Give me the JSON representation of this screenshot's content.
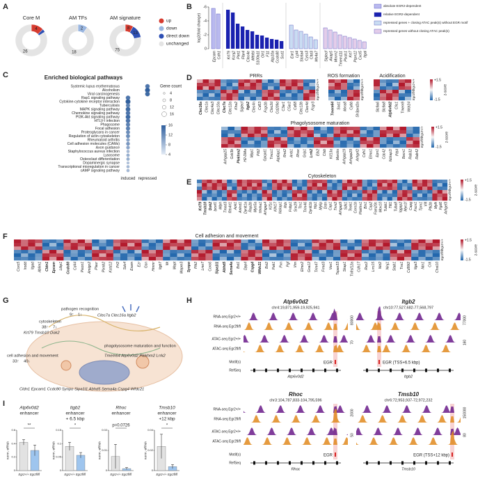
{
  "panel_labels": [
    "A",
    "B",
    "C",
    "D",
    "E",
    "F",
    "G",
    "H",
    "I"
  ],
  "chart_data": [
    {
      "type": "donut",
      "categories": [
        "up",
        "down",
        "direct down",
        "unchanged"
      ],
      "colors": [
        "#d63b2f",
        "#9ab6e0",
        "#2d4fb4",
        "#e4e4e4"
      ],
      "donuts": [
        {
          "title": "Core M",
          "values": [
            4,
            0,
            1,
            26
          ]
        },
        {
          "title": "AM TFs",
          "values": [
            0,
            2,
            0,
            18
          ]
        },
        {
          "title": "AM signature",
          "values": [
            8,
            0,
            13,
            75
          ]
        }
      ]
    },
    {
      "type": "bar",
      "ylabel": "log2(fold change)",
      "ylim": [
        0,
        -6
      ],
      "yticks": [
        0,
        -2,
        -4,
        -6
      ],
      "series": [
        {
          "name": "absolute EGR2-dependent",
          "color": "#b9b9ef",
          "categories": [
            "Epcam",
            "Cdh1"
          ],
          "values": [
            -5.8,
            -5.0
          ]
        },
        {
          "name": "relative EGR2-dependent",
          "color": "#1a22b0",
          "categories": [
            "Krt79",
            "Kcnj2",
            "Plet1",
            "Ffar4",
            "Clec4e",
            "Mthfsl",
            "S100a11",
            "Olr1",
            "F11",
            "Atp10a",
            "Ccdc80",
            "Scd1"
          ],
          "values": [
            -5.6,
            -5.2,
            -3.6,
            -3.2,
            -2.7,
            -2.5,
            -2.0,
            -1.9,
            -1.6,
            -1.4,
            -1.3,
            -1.1
          ]
        },
        {
          "name": "repressed genes + closing ATAC peak(s) without EGR motif",
          "color": "#c9dcf2",
          "categories": [
            "Ear1",
            "Lpl4",
            "Slc6a4",
            "Cyss3",
            "Cltd3",
            "Ms4a7"
          ],
          "values": [
            -3.4,
            -2.7,
            -2.5,
            -2.1,
            -1.7,
            -1.3
          ]
        },
        {
          "name": "repressed genes without closing ATAC peak(s)",
          "color": "#e3cdea",
          "categories": [
            "Siglecf",
            "Akap5",
            "Mmrn2",
            "Tmem111",
            "Plxdc1",
            "Krt7",
            "Ptpn12",
            "Cxcl5",
            "Itgal"
          ],
          "values": [
            -3.0,
            -2.7,
            -2.4,
            -2.0,
            -1.8,
            -1.6,
            -1.4,
            -1.2,
            -1.0
          ]
        }
      ]
    },
    {
      "type": "dot",
      "title": "Enriched biological pathways",
      "size_title": "Gene count",
      "size_ticks": [
        4,
        8,
        12,
        16
      ],
      "color_ticks": [
        16,
        12,
        8,
        4
      ],
      "x": [
        "induced",
        "repressed"
      ],
      "categories": [
        "Systemic lupus erythematosus",
        "Alcoholism",
        "Viral carcinogenesis",
        "Rap1 signaling pathway",
        "Cytokine-cytokine receptor interaction",
        "Tuberculosis",
        "MAPK signaling pathway",
        "Chemokine signaling pathway",
        "PI3K-Akt signaling pathway",
        "HTLV-I infection",
        "Phagosome",
        "Focal adhesion",
        "Proteoglycans in cancer",
        "Regulation of actin cytoskeleton",
        "Rheumatoid arthritis",
        "Cell adhesion molecules (CAMs)",
        "Axon guidance",
        "Staphylococcus aureus infection",
        "Lysosome",
        "Osteoclast differentiation",
        "Dopaminergic synapse",
        "Transcriptional misregulation in cancer",
        "cAMP signaling pathway"
      ],
      "series": [
        {
          "name": "induced",
          "values": [
            null,
            null,
            null,
            14,
            16,
            13,
            15,
            14,
            15,
            14,
            13,
            13,
            12,
            12,
            10,
            11,
            10,
            8,
            9,
            9,
            7,
            8,
            8
          ]
        },
        {
          "name": "repressed",
          "values": [
            14,
            16,
            15,
            null,
            null,
            null,
            null,
            null,
            null,
            null,
            null,
            null,
            null,
            null,
            null,
            null,
            null,
            null,
            null,
            null,
            null,
            null,
            null
          ]
        }
      ]
    },
    {
      "type": "bar",
      "title": [
        "Atp6v0d2",
        "enhancer"
      ],
      "ylabel": "norm. eRNA",
      "categories": [
        "Egr2+/+",
        "Egr2fl/fl"
      ],
      "colors": [
        "#e2e2e2",
        "#9ec5ee"
      ],
      "values": [
        0.42,
        0.3
      ],
      "errors": [
        0.04,
        0.08
      ],
      "ylim": [
        0,
        0.6
      ],
      "yticks": [
        0,
        0.2,
        0.4,
        0.6
      ],
      "annotation": "**"
    },
    {
      "type": "bar",
      "title": [
        "Itgb2",
        "enhancer",
        "+ 6.5 kbp"
      ],
      "ylabel": "norm. eRNA",
      "categories": [
        "Egr2+/+",
        "Egr2fl/fl"
      ],
      "colors": [
        "#e2e2e2",
        "#9ec5ee"
      ],
      "values": [
        0.09,
        0.057
      ],
      "errors": [
        0.015,
        0.01
      ],
      "ylim": [
        0,
        0.15
      ],
      "yticks": [
        0,
        0.05,
        0.1,
        0.15
      ],
      "annotation": "*"
    },
    {
      "type": "bar",
      "title": [
        "Rhoc",
        "enhancer"
      ],
      "ylabel": "norm. eRNA",
      "categories": [
        "Egr2+/+",
        "Egr2fl/fl"
      ],
      "colors": [
        "#e2e2e2",
        "#9ec5ee"
      ],
      "values": [
        0.007,
        0.001
      ],
      "errors": [
        0.006,
        0.0005
      ],
      "ylim": [
        0,
        0.02
      ],
      "yticks": [
        0,
        0.01,
        0.02
      ],
      "annotation": "p=0.0726"
    },
    {
      "type": "bar",
      "title": [
        "Tmsb10",
        "enhancer",
        "+12 kbp"
      ],
      "ylabel": "norm. eRNA",
      "categories": [
        "Egr2+/+",
        "Egr2fl/fl"
      ],
      "colors": [
        "#e2e2e2",
        "#9ec5ee"
      ],
      "values": [
        0.024,
        0.004
      ],
      "errors": [
        0.012,
        0.002
      ],
      "ylim": [
        0,
        0.04
      ],
      "yticks": [
        0,
        0.02,
        0.04
      ],
      "annotation": "*"
    }
  ],
  "heatmaps": {
    "row_labels": [
      "Egr2+/+",
      "Egr2fl/fl"
    ],
    "scale": {
      "max": "+1.5",
      "min": "-1.5",
      "title": "z-score"
    },
    "blocks": [
      {
        "title": "PRRs",
        "genes": [
          "Clec16a",
          "Clec1a",
          "Clec4a3",
          "Clec10a",
          "Clec7a",
          "Clec12a",
          "Klra2",
          "Siglecf",
          "Itgb2",
          "Clec4n",
          "Cd63",
          "Fcgr2b",
          "Clec2d",
          "Cd209d",
          "C3ar1",
          "C5ar2",
          "Cd68",
          "Clec12b",
          "Clec4d",
          "Fcgr3"
        ],
        "highlight": [
          0,
          4,
          8
        ]
      },
      {
        "title": "ROS formation",
        "genes": [
          "Tmem64",
          "Sod1",
          "Mxra8",
          "Cybb",
          "Sh3pxd2a"
        ],
        "highlight": [
          0
        ]
      },
      {
        "title": "Acidification",
        "genes": [
          "Slc9a6",
          "Slc9a8",
          "Atp6v0d2",
          "Clic1",
          "Tmem9",
          "Wdr24"
        ],
        "highlight": [
          2
        ]
      },
      {
        "title": "Phagolysosome maturation",
        "genes": [
          "Arhgap25",
          "Gsk3b",
          "Plekhm2",
          "H2-DMa",
          "Mpp1",
          "Pld2",
          "Gpcpd1",
          "Tmcc1",
          "Atp6ap1",
          "Rnd2",
          "Arrb1",
          "Rhoc",
          "Grip1",
          "Lrrk2",
          "Ebi2",
          "Ctsb",
          "Kif13a",
          "Marcks",
          "Arhgap19",
          "Arhgap29",
          "Arhgef2",
          "Cdh1",
          "Elmo1",
          "Epn1",
          "Cdc42",
          "Nckap1l",
          "Pld4",
          "Becn1",
          "Rab32",
          "Rab42"
        ],
        "highlight": [
          2,
          13
        ]
      },
      {
        "title": "Cytoskeleton",
        "genes": [
          "Krt79",
          "Tmsb10",
          "Dok2",
          "Ipcef1",
          "Mlph",
          "Tmod3",
          "Rtn4rl1",
          "Aok1",
          "Ankrd1",
          "Dynlt1a",
          "Rap2b",
          "Myo5a",
          "Hmha1",
          "Arhgap4",
          "Kif1c",
          "Klhl17",
          "Nckap1",
          "Rdx",
          "Fnbp1",
          "Snx29",
          "Ttn1",
          "Trim46",
          "Dynlt1b",
          "Hip1",
          "Mylip",
          "Dstn",
          "Cap1",
          "Tnni2",
          "Arhgap9",
          "Sdk1",
          "Teak1",
          "Coro1b",
          "Plekhn1",
          "Bin1",
          "Cap2",
          "Fam20c",
          "Mov10",
          "Tubb1",
          "Ttll1",
          "Tuba8",
          "Iqgap2",
          "Myo1f",
          "Capg",
          "Fscn1",
          "Tpm1",
          "Vill",
          "Ptk2b",
          "Mylk",
          "Fgd6",
          "Arhgef3"
        ],
        "highlight": [
          0,
          1,
          2
        ]
      },
      {
        "title": "Cell adhesion and movement",
        "genes": [
          "Cxxc5",
          "Irodd",
          "Itgad",
          "Ablim1",
          "Cldn1",
          "Epcam",
          "Ltbp1",
          "Ccdc80",
          "Cd44",
          "Piezo1",
          "Amigo2",
          "Plaur",
          "Plxnb2",
          "Kctd12",
          "Prl2",
          "Sdc4",
          "Esam",
          "Ezr",
          "Gsn",
          "Hmmr",
          "Itgb7",
          "Itk",
          "Mapt",
          "Mapre3",
          "Synpo",
          "Ptk2",
          "Lmo7",
          "Coro6",
          "Sipa1l1",
          "Abhd5",
          "Sema4a",
          "Bst1",
          "Dpp4",
          "Cspg4",
          "Wfdc21",
          "Bst2",
          "Pak1",
          "Pxn",
          "Pgf",
          "Vim",
          "Elmo2",
          "Gna12",
          "Trim47",
          "Frmd3",
          "Vav1",
          "Tspan33",
          "Skap1",
          "Tnfrsf12a",
          "Cdh17",
          "Rac2",
          "Lrrc15",
          "Nid2",
          "Ninj1",
          "Stab1",
          "Tns1",
          "Cd99l2",
          "Itga3",
          "Ntn1",
          "Crk",
          "Chst10"
        ],
        "highlight": [
          4,
          5,
          7,
          24,
          28,
          29,
          30,
          33,
          34
        ]
      }
    ]
  },
  "diagram": {
    "texts": [
      "pathogen recognition",
      "9↑",
      "1↓",
      "Clec7a Clec16a Itgb2",
      "cytoskeleton",
      "38↑",
      "7↓",
      "Krt79 Tmsb10 Dok2",
      "phagolysosome maturation and function",
      "Tmem64 Atp6v0d2 Plekhm2 Lrrk2",
      "cell adhesion and movement",
      "33↑",
      "40↓",
      "Cldn1 Epcam1 Ccdc80 Synpo Sipa1l1 Abhd5 Sema4a Cspg4 Wfdc21"
    ]
  },
  "tracks": {
    "track_labels": [
      "RNA-seq Egr2+/+",
      "RNA-seq Egr2fl/fl",
      "ATAC-seq Egr2+/+",
      "ATAC-seq Egr2fl/fl",
      "Motif(s)",
      "RefSeq"
    ],
    "loci": [
      {
        "gene": "Atp6v0d2",
        "coords": "chr4:19,871,959-19,925,941",
        "rna_max": 80000,
        "atac_max": 70,
        "egr": "EGR"
      },
      {
        "gene": "Itgb2",
        "coords": "chr10:77,527,682-77,568,797",
        "rna_max": 77000,
        "atac_max": 160,
        "egr": "EGR (TSS+6.5 kbp)"
      },
      {
        "gene": "Rhoc",
        "coords": "chr3:104,787,833-104,795,596",
        "rna_max": 2000,
        "atac_max": 50,
        "egr": "EGR"
      },
      {
        "gene": "Tmsb10",
        "coords": "chr6:72,953,937-72,972,232",
        "rna_max": 150000,
        "atac_max": 80,
        "egr": "EGR (TSS+12 kbp)"
      }
    ]
  }
}
